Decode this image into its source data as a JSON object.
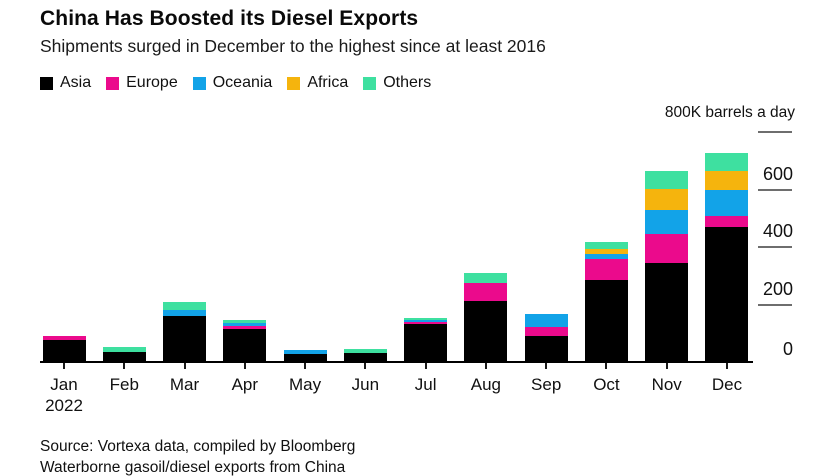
{
  "header": {
    "title": "China Has Boosted its Diesel Exports",
    "subtitle": "Shipments surged in December to the highest since at least 2016"
  },
  "axis": {
    "unit_label": "800K barrels a day",
    "y_tick_labels": [
      0,
      200,
      400,
      600
    ],
    "y_tick_line_values": [
      200,
      400,
      600,
      800
    ],
    "x_year": "2022"
  },
  "footer": {
    "source": "Source: Vortexa data, compiled by Bloomberg",
    "note": "Waterborne gasoil/diesel exports from China"
  },
  "chart_data": {
    "type": "bar",
    "stacked": true,
    "title": "China Has Boosted its Diesel Exports",
    "subtitle": "Shipments surged in December to the highest since at least 2016",
    "unit": "K barrels a day",
    "ylim": [
      0,
      800
    ],
    "grid": false,
    "legend_position": "top-left",
    "categories": [
      "Jan",
      "Feb",
      "Mar",
      "Apr",
      "May",
      "Jun",
      "Jul",
      "Aug",
      "Sep",
      "Oct",
      "Nov",
      "Dec"
    ],
    "series": [
      {
        "name": "Asia",
        "color": "#000000",
        "values": [
          72,
          31,
          155,
          113,
          26,
          29,
          129,
          210,
          87,
          283,
          341,
          466
        ]
      },
      {
        "name": "Europe",
        "color": "#eb0a8c",
        "values": [
          15,
          0,
          0,
          9,
          0,
          0,
          6,
          60,
          30,
          72,
          101,
          38
        ]
      },
      {
        "name": "Oceania",
        "color": "#12a3e8",
        "values": [
          0,
          0,
          24,
          9,
          13,
          0,
          9,
          0,
          45,
          18,
          82,
          92
        ]
      },
      {
        "name": "Africa",
        "color": "#f5b40d",
        "values": [
          0,
          0,
          0,
          0,
          0,
          0,
          0,
          0,
          0,
          15,
          73,
          64
        ]
      },
      {
        "name": "Others",
        "color": "#3ee0a0",
        "values": [
          0,
          19,
          27,
          12,
          0,
          14,
          4,
          35,
          0,
          26,
          63,
          65
        ]
      }
    ],
    "totals": [
      87,
      50,
      206,
      143,
      39,
      43,
      148,
      305,
      162,
      414,
      660,
      725
    ]
  }
}
